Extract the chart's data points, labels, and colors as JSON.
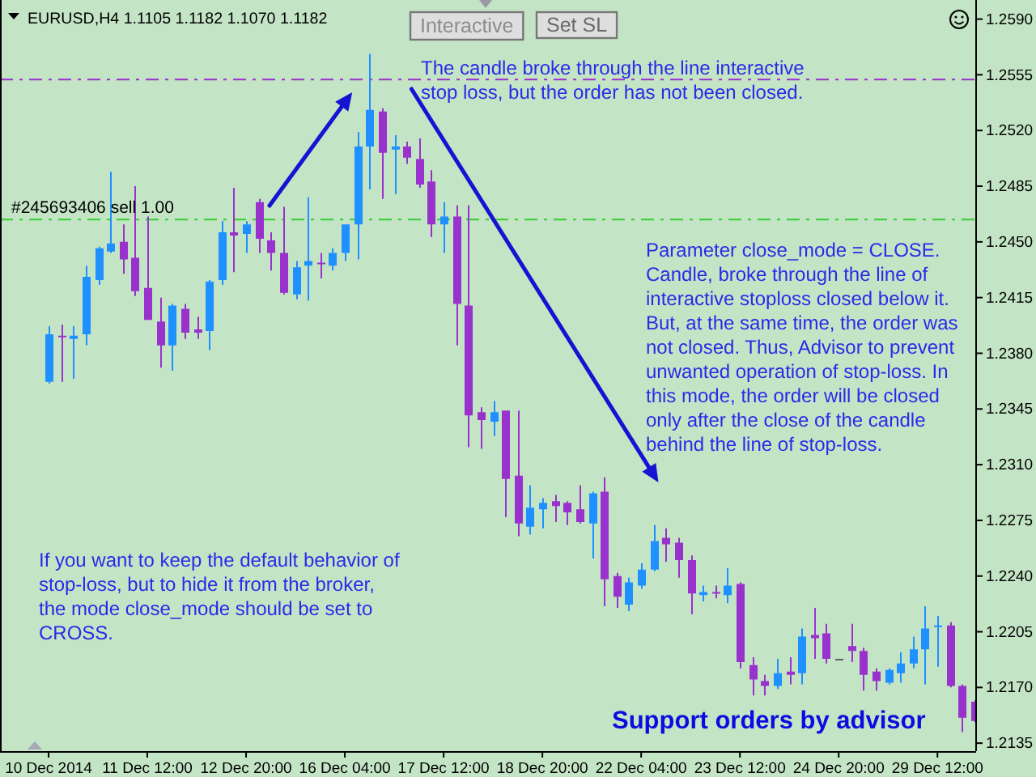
{
  "chart_data": {
    "type": "candlestick",
    "title": "EURUSD,H4 1.1105 1.1182 1.1070 1.1182",
    "categories": [
      "10 Dec 2014",
      null,
      null,
      null,
      null,
      null,
      null,
      null,
      "11 Dec 12:00",
      null,
      null,
      null,
      null,
      null,
      null,
      null,
      "12 Dec 20:00",
      null,
      null,
      null,
      null,
      null,
      null,
      null,
      "16 Dec 04:00",
      null,
      null,
      null,
      null,
      null,
      null,
      null,
      "17 Dec 12:00",
      null,
      null,
      null,
      null,
      null,
      null,
      null,
      "18 Dec 20:00",
      null,
      null,
      null,
      null,
      null,
      null,
      null,
      "22 Dec 04:00",
      null,
      null,
      null,
      null,
      null,
      null,
      null,
      "23 Dec 12:00",
      null,
      null,
      null,
      null,
      null,
      null,
      null,
      "24 Dec 20:00",
      null,
      null,
      null,
      null,
      null,
      null,
      null,
      "29 Dec 12:00",
      null,
      null,
      null
    ],
    "ohlc": [
      [
        1.2362,
        1.2397,
        1.2361,
        1.2392
      ],
      [
        1.2391,
        1.2398,
        1.2362,
        1.239
      ],
      [
        1.2389,
        1.2397,
        1.2364,
        1.2391
      ],
      [
        1.2392,
        1.2435,
        1.2385,
        1.2428
      ],
      [
        1.2426,
        1.2447,
        1.2423,
        1.2446
      ],
      [
        1.2444,
        1.2494,
        1.2443,
        1.2449
      ],
      [
        1.245,
        1.2461,
        1.243,
        1.2439
      ],
      [
        1.244,
        1.2485,
        1.2416,
        1.2419
      ],
      [
        1.2421,
        1.2466,
        1.2401,
        1.2401
      ],
      [
        1.24,
        1.2415,
        1.2371,
        1.2385
      ],
      [
        1.2385,
        1.2411,
        1.2369,
        1.241
      ],
      [
        1.2408,
        1.2411,
        1.2389,
        1.2393
      ],
      [
        1.2395,
        1.2403,
        1.2389,
        1.2393
      ],
      [
        1.2394,
        1.2426,
        1.2382,
        1.2425
      ],
      [
        1.2426,
        1.2463,
        1.2423,
        1.2456
      ],
      [
        1.2456,
        1.2484,
        1.2431,
        1.2454
      ],
      [
        1.2455,
        1.2463,
        1.2443,
        1.2461
      ],
      [
        1.2475,
        1.2477,
        1.2443,
        1.2452
      ],
      [
        1.2451,
        1.2456,
        1.2432,
        1.2443
      ],
      [
        1.2443,
        1.2472,
        1.2417,
        1.2418
      ],
      [
        1.2417,
        1.2438,
        1.2414,
        1.2434
      ],
      [
        1.2435,
        1.2478,
        1.2413,
        1.2438
      ],
      [
        1.2437,
        1.2443,
        1.2427,
        1.2436
      ],
      [
        1.2435,
        1.2446,
        1.2432,
        1.2443
      ],
      [
        1.2443,
        1.2461,
        1.2438,
        1.2461
      ],
      [
        1.2461,
        1.2519,
        1.2439,
        1.251
      ],
      [
        1.251,
        1.2568,
        1.2483,
        1.2533
      ],
      [
        1.2532,
        1.2534,
        1.2477,
        1.2506
      ],
      [
        1.2508,
        1.2517,
        1.248,
        1.251
      ],
      [
        1.251,
        1.2513,
        1.2499,
        1.2503
      ],
      [
        1.2502,
        1.2515,
        1.2484,
        1.2486
      ],
      [
        1.2488,
        1.2495,
        1.2453,
        1.2461
      ],
      [
        1.2461,
        1.2475,
        1.2443,
        1.2466
      ],
      [
        1.2466,
        1.2473,
        1.2385,
        1.2411
      ],
      [
        1.241,
        1.2473,
        1.2321,
        1.2341
      ],
      [
        1.2343,
        1.2346,
        1.232,
        1.2338
      ],
      [
        1.2337,
        1.235,
        1.2328,
        1.2343
      ],
      [
        1.2344,
        1.2344,
        1.2277,
        1.2301
      ],
      [
        1.2303,
        1.2344,
        1.2265,
        1.2273
      ],
      [
        1.2271,
        1.2297,
        1.2266,
        1.2283
      ],
      [
        1.2282,
        1.2289,
        1.227,
        1.2286
      ],
      [
        1.2287,
        1.2291,
        1.2274,
        1.2284
      ],
      [
        1.2286,
        1.2287,
        1.2272,
        1.228
      ],
      [
        1.2282,
        1.2297,
        1.2273,
        1.2274
      ],
      [
        1.2273,
        1.2293,
        1.2251,
        1.2292
      ],
      [
        1.2293,
        1.2302,
        1.2221,
        1.2238
      ],
      [
        1.224,
        1.2242,
        1.222,
        1.2227
      ],
      [
        1.2222,
        1.2239,
        1.2218,
        1.2236
      ],
      [
        1.2234,
        1.2248,
        1.2232,
        1.2244
      ],
      [
        1.2244,
        1.2272,
        1.2243,
        1.2262
      ],
      [
        1.2264,
        1.227,
        1.2249,
        1.226
      ],
      [
        1.2261,
        1.2264,
        1.2239,
        1.225
      ],
      [
        1.225,
        1.2253,
        1.2216,
        1.2229
      ],
      [
        1.2228,
        1.2234,
        1.2224,
        1.223
      ],
      [
        1.223,
        1.2234,
        1.2226,
        1.2229
      ],
      [
        1.2228,
        1.2245,
        1.2223,
        1.2234
      ],
      [
        1.2235,
        1.2236,
        1.2182,
        1.2186
      ],
      [
        1.2184,
        1.2189,
        1.2165,
        1.2175
      ],
      [
        1.2174,
        1.2178,
        1.2165,
        1.2171
      ],
      [
        1.2171,
        1.2188,
        1.2169,
        1.2179
      ],
      [
        1.218,
        1.2189,
        1.2172,
        1.2178
      ],
      [
        1.2179,
        1.2207,
        1.2172,
        1.2202
      ],
      [
        1.2203,
        1.222,
        1.2188,
        1.2201
      ],
      [
        1.2204,
        1.221,
        1.2185,
        1.2188
      ],
      [
        1.2188,
        1.2188,
        1.2188,
        1.2188
      ],
      [
        1.2196,
        1.221,
        1.2186,
        1.2193
      ],
      [
        1.2193,
        1.2195,
        1.2168,
        1.2178
      ],
      [
        1.218,
        1.2182,
        1.2168,
        1.2174
      ],
      [
        1.2173,
        1.2182,
        1.2172,
        1.2181
      ],
      [
        1.2179,
        1.2192,
        1.2173,
        1.2185
      ],
      [
        1.2185,
        1.2202,
        1.2182,
        1.2194
      ],
      [
        1.2194,
        1.2221,
        1.2172,
        1.2207
      ],
      [
        1.2208,
        1.2215,
        1.2183,
        1.2209
      ],
      [
        1.2209,
        1.2211,
        1.217,
        1.2171
      ],
      [
        1.2171,
        1.2172,
        1.2142,
        1.2151
      ],
      [
        1.2161,
        1.2162,
        1.2148,
        1.2149
      ]
    ],
    "colors": [
      "#1e90ff",
      "#9932cc",
      "#1e90ff",
      "#1e90ff",
      "#1e90ff",
      "#1e90ff",
      "#9932cc",
      "#9932cc",
      "#9932cc",
      "#9932cc",
      "#1e90ff",
      "#9932cc",
      "#9932cc",
      "#1e90ff",
      "#1e90ff",
      "#9932cc",
      "#1e90ff",
      "#9932cc",
      "#9932cc",
      "#9932cc",
      "#1e90ff",
      "#1e90ff",
      "#9932cc",
      "#1e90ff",
      "#1e90ff",
      "#1e90ff",
      "#1e90ff",
      "#9932cc",
      "#1e90ff",
      "#9932cc",
      "#9932cc",
      "#9932cc",
      "#1e90ff",
      "#9932cc",
      "#9932cc",
      "#9932cc",
      "#1e90ff",
      "#9932cc",
      "#9932cc",
      "#1e90ff",
      "#1e90ff",
      "#9932cc",
      "#9932cc",
      "#9932cc",
      "#1e90ff",
      "#9932cc",
      "#9932cc",
      "#1e90ff",
      "#1e90ff",
      "#1e90ff",
      "#9932cc",
      "#9932cc",
      "#9932cc",
      "#1e90ff",
      "#9932cc",
      "#1e90ff",
      "#9932cc",
      "#9932cc",
      "#9932cc",
      "#1e90ff",
      "#9932cc",
      "#1e90ff",
      "#9932cc",
      "#9932cc",
      "#606060",
      "#9932cc",
      "#9932cc",
      "#9932cc",
      "#1e90ff",
      "#1e90ff",
      "#1e90ff",
      "#1e90ff",
      "#1e90ff",
      "#9932cc",
      "#9932cc",
      "#9932cc"
    ],
    "ylim": [
      1.213,
      1.2602
    ],
    "yticks": [
      {
        "value": 1.259,
        "label": "1.2590"
      },
      1.2555,
      {
        "value": 1.252,
        "label": "1.2520"
      },
      1.2485,
      {
        "value": 1.245,
        "label": "1.2450"
      },
      1.2415,
      {
        "value": 1.238,
        "label": "1.2380"
      },
      1.2345,
      {
        "value": 1.231,
        "label": "1.2310"
      },
      1.2275,
      {
        "value": 1.224,
        "label": "1.2240"
      },
      1.2205,
      {
        "value": 1.217,
        "label": "1.2170"
      },
      1.2135
    ],
    "ref_lines": [
      {
        "axis": "y",
        "value": 1.2552,
        "color": "#9932cc",
        "line_style": "dashed"
      },
      {
        "axis": "y",
        "value": 1.2464,
        "label": "#245693406 sell 1.00",
        "color": "#32cd32",
        "line_style": "dashed"
      }
    ],
    "annotations": [
      "Interactive",
      "Set SL",
      "The candle broke through the line interactive\nstop loss, but the order has not been closed.",
      "Parameter close_mode = CLOSE.\nCandle, broke through the line of\ninteractive stoploss closed below it.\nBut, at the same time, the order was\nnot closed. Thus, Advisor to prevent\nunwanted operation of stop-loss. In\nthis mode, the order will be closed\nonly after the close of the candle\nbehind the line of stop-loss.",
      "If you want to keep the default behavior of\nstop-loss, but to hide it from the broker,\nthe mode close_mode should be set to\nCROSS.",
      "Support orders by advisor"
    ]
  }
}
